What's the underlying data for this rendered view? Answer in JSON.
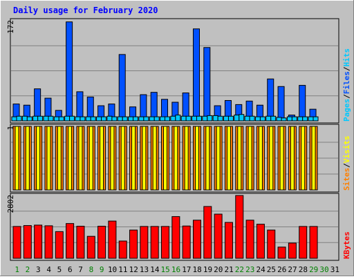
{
  "chart_data": {
    "title": "Daily usage for February 2020",
    "days": [
      "1",
      "2",
      "3",
      "4",
      "5",
      "6",
      "7",
      "8",
      "9",
      "10",
      "11",
      "12",
      "13",
      "14",
      "15",
      "16",
      "17",
      "18",
      "19",
      "20",
      "21",
      "22",
      "23",
      "24",
      "25",
      "26",
      "27",
      "28",
      "29",
      "30",
      "31"
    ],
    "weekend_days": [
      1,
      2,
      8,
      9,
      15,
      16,
      22,
      23,
      29,
      30
    ],
    "panels": [
      {
        "type": "bar",
        "scale_label": "172",
        "ylim": [
          0,
          172
        ],
        "series": [
          {
            "name": "Pages",
            "color": "#00c8ff",
            "values": [
              7,
              8,
              8,
              8,
              7,
              8,
              7,
              7,
              7,
              8,
              7,
              7,
              7,
              7,
              7,
              8,
              8,
              8,
              8,
              9,
              8,
              10,
              8,
              7,
              8,
              6,
              7,
              7,
              7,
              null,
              null
            ]
          },
          {
            "name": "Files",
            "color": "#0050ff",
            "values": [
              29,
              27,
              55,
              39,
              18,
              170,
              50,
              41,
              26,
              29,
              114,
              24,
              45,
              49,
              37,
              32,
              48,
              158,
              126,
              26,
              35,
              28,
              34,
              27,
              72,
              59,
              10,
              61,
              20,
              null,
              null
            ]
          },
          {
            "name": "Hits",
            "color": "#00c8ff",
            "values": [
              8,
              7,
              8,
              8,
              7,
              8,
              7,
              7,
              7,
              7,
              7,
              7,
              7,
              7,
              7,
              10,
              8,
              8,
              9,
              8,
              8,
              11,
              8,
              7,
              8,
              5,
              7,
              7,
              7,
              null,
              null
            ]
          }
        ],
        "legend_separators": [
          "/",
          "/"
        ]
      },
      {
        "type": "bar",
        "scale_label": "1",
        "ylim": [
          0,
          1
        ],
        "series": [
          {
            "name": "Sites",
            "color": "#ff8000",
            "values": [
              1,
              1,
              1,
              1,
              1,
              1,
              1,
              1,
              1,
              1,
              1,
              1,
              1,
              1,
              1,
              1,
              1,
              1,
              1,
              1,
              1,
              1,
              1,
              1,
              1,
              1,
              1,
              1,
              1,
              null,
              null
            ]
          },
          {
            "name": "Visits",
            "color": "#ffff00",
            "values": [
              1,
              1,
              1,
              1,
              1,
              1,
              1,
              1,
              1,
              1,
              1,
              1,
              1,
              1,
              1,
              1,
              1,
              1,
              1,
              1,
              1,
              1,
              1,
              1,
              1,
              1,
              1,
              1,
              1,
              null,
              null
            ]
          }
        ],
        "legend_separators": [
          "/"
        ]
      },
      {
        "type": "bar",
        "scale_label": "2802",
        "ylim": [
          0,
          2802
        ],
        "series": [
          {
            "name": "KBytes",
            "color": "#ff0000",
            "values": [
              1420,
              1460,
              1480,
              1450,
              1190,
              1550,
              1430,
              980,
              1430,
              1660,
              770,
              1260,
              1420,
              1420,
              1420,
              1860,
              1440,
              1700,
              2310,
              1970,
              1600,
              2800,
              1700,
              1520,
              1260,
              500,
              680,
              1420,
              1420,
              null,
              null
            ]
          }
        ],
        "legend_separators": []
      }
    ]
  }
}
